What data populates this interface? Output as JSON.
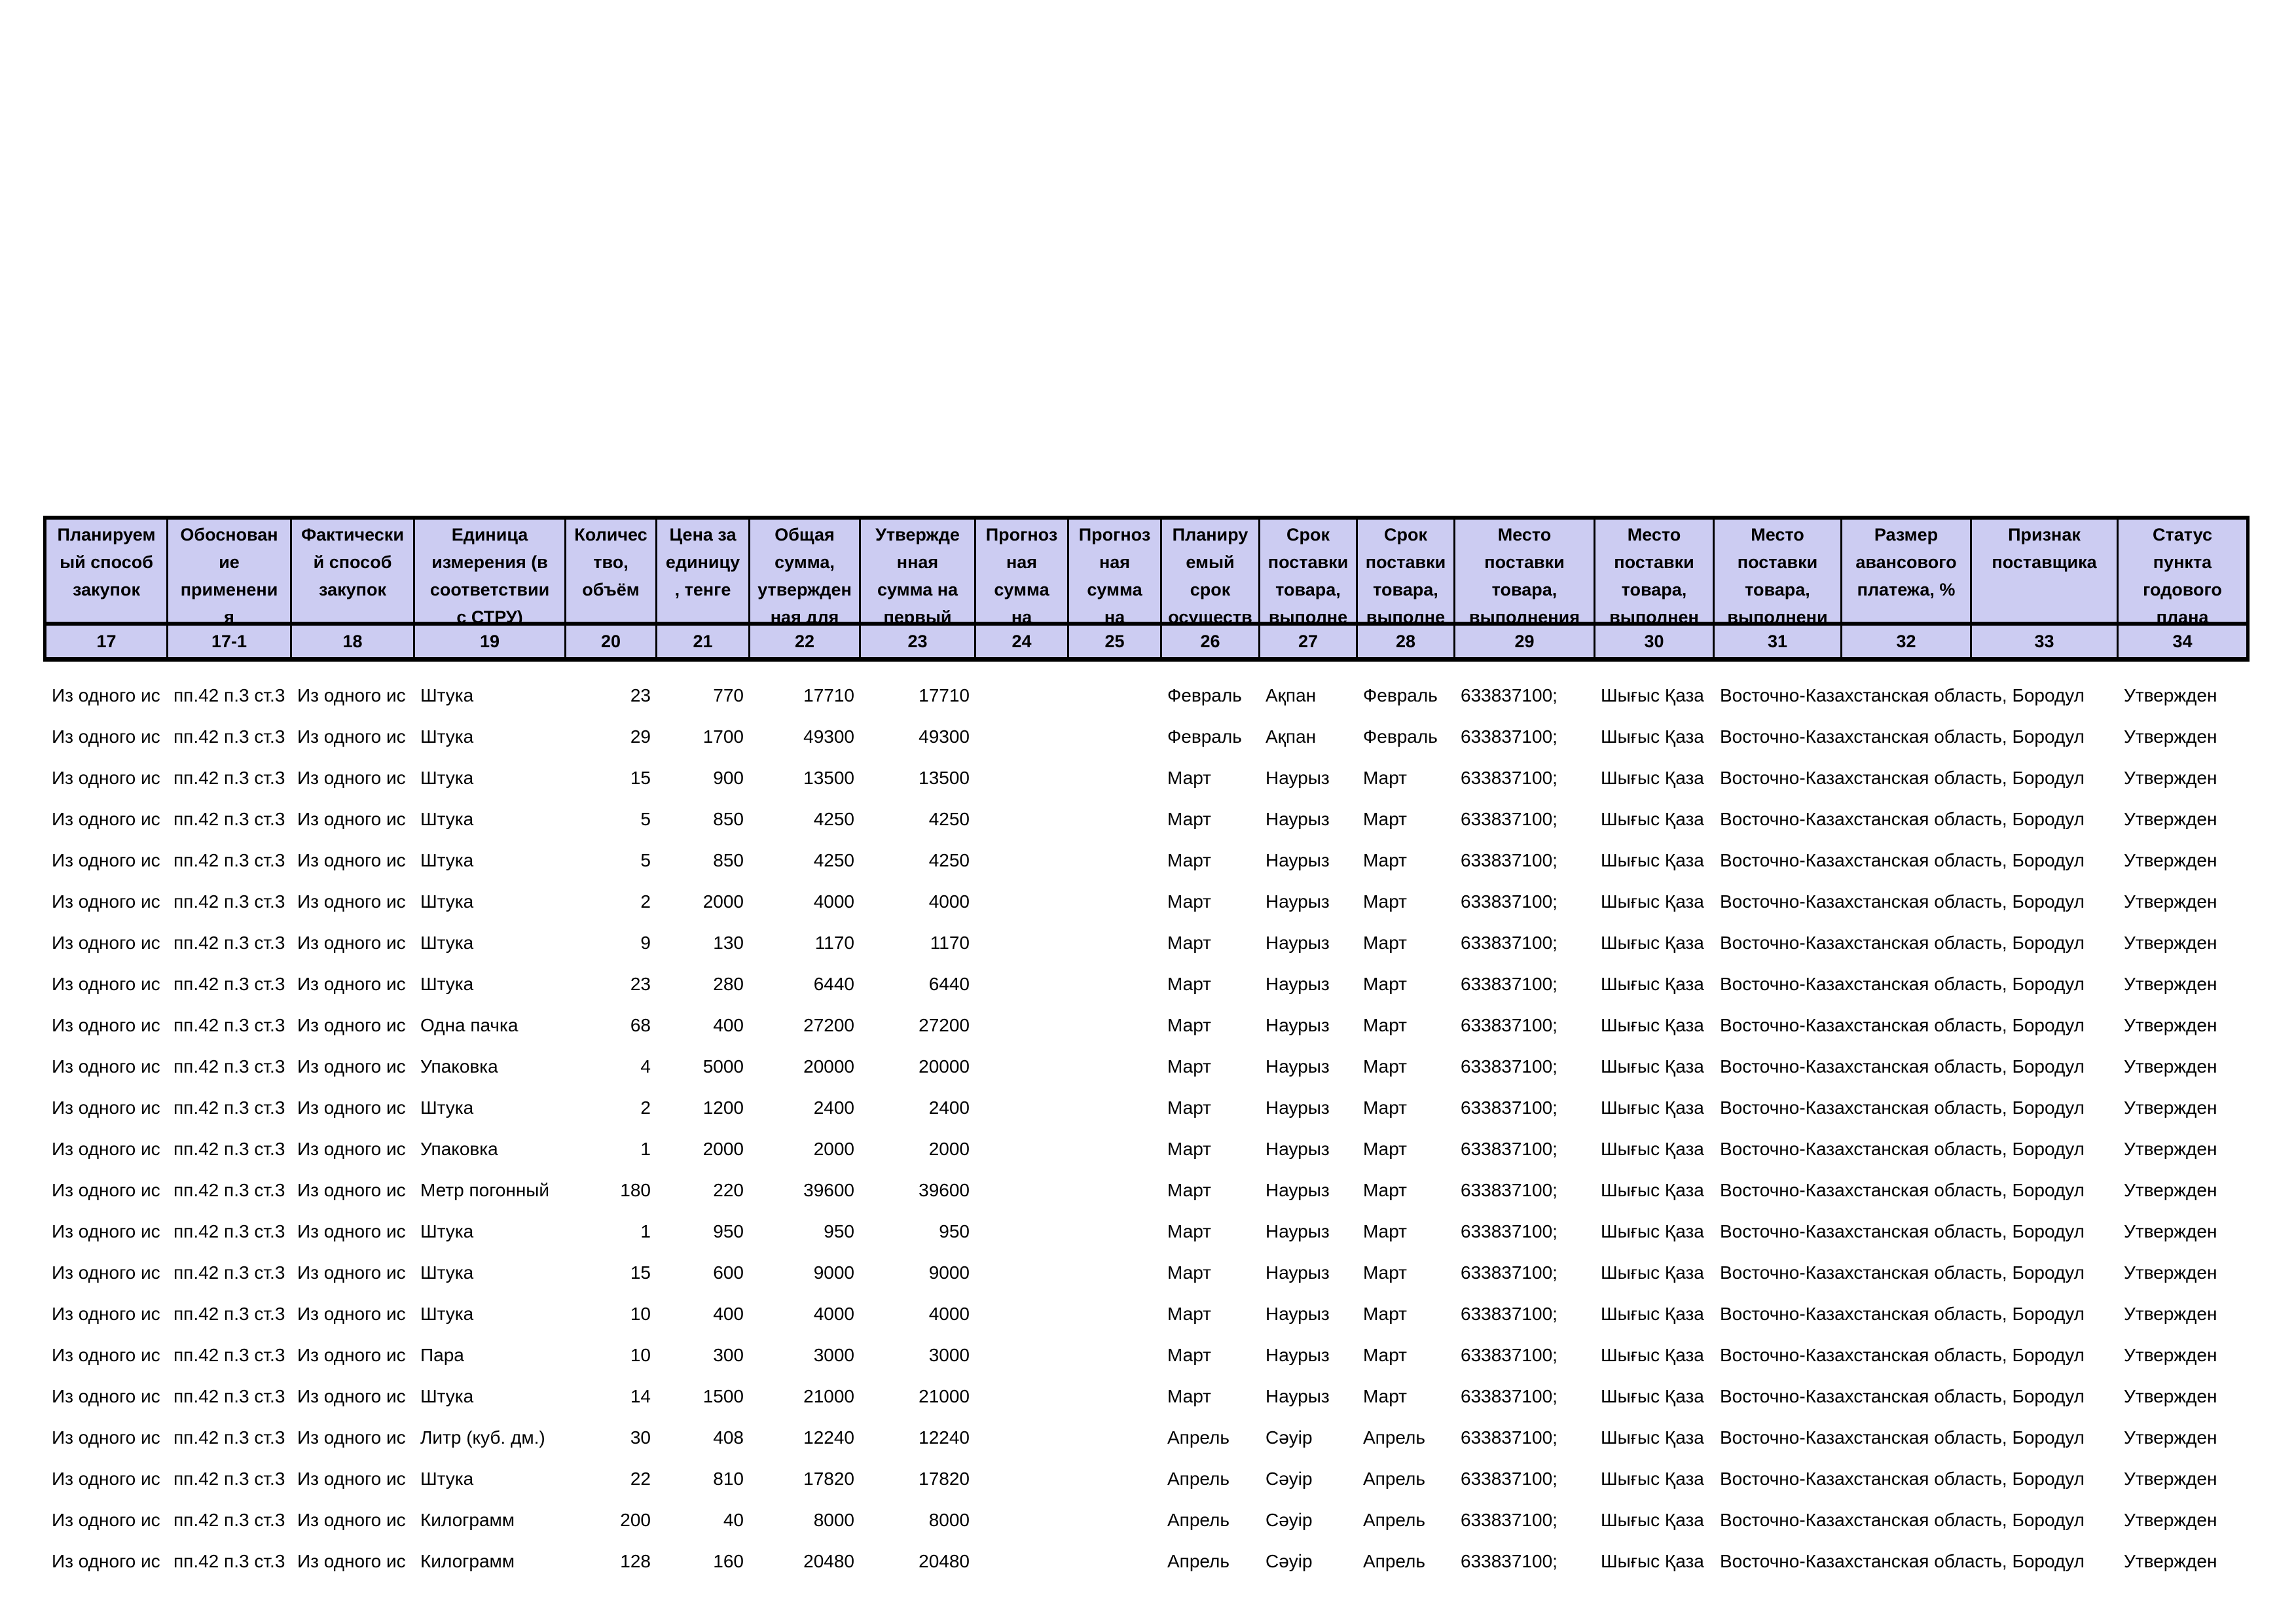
{
  "colors": {
    "header_fill": "#CCCCF2",
    "border": "#000000",
    "text": "#000000",
    "background": "#FFFFFF"
  },
  "table": {
    "columns": [
      {
        "id": "c17",
        "num": "17",
        "label": "Планируем\nый способ\nзакупок"
      },
      {
        "id": "c17_1",
        "num": "17-1",
        "label": "Обоснован\nие\nприменени\nя"
      },
      {
        "id": "c18",
        "num": "18",
        "label": "Фактически\nй способ\nзакупок"
      },
      {
        "id": "c19",
        "num": "19",
        "label": "Единица\nизмерения (в\nсоответствии\nс СТРУ)"
      },
      {
        "id": "c20",
        "num": "20",
        "label": "Количес\nтво,\nобъём"
      },
      {
        "id": "c21",
        "num": "21",
        "label": "Цена за\nединицу\n, тенге"
      },
      {
        "id": "c22",
        "num": "22",
        "label": "Общая\nсумма,\nутвержден\nная для"
      },
      {
        "id": "c23",
        "num": "23",
        "label": "Утвержде\nнная\nсумма на\nпервый"
      },
      {
        "id": "c24",
        "num": "24",
        "label": "Прогноз\nная\nсумма\nна"
      },
      {
        "id": "c25",
        "num": "25",
        "label": "Прогноз\nная\nсумма\nна"
      },
      {
        "id": "c26",
        "num": "26",
        "label": "Планиру\nемый\nсрок\nосуществ"
      },
      {
        "id": "c27",
        "num": "27",
        "label": "Срок\nпоставки\nтовара,\nвыполне"
      },
      {
        "id": "c28",
        "num": "28",
        "label": "Срок\nпоставки\nтовара,\nвыполне"
      },
      {
        "id": "c29",
        "num": "29",
        "label": "Место\nпоставки\nтовара,\nвыполнения"
      },
      {
        "id": "c30",
        "num": "30",
        "label": "Место\nпоставки\nтовара,\nвыполнен"
      },
      {
        "id": "c31",
        "num": "31",
        "label": "Место\nпоставки\nтовара,\nвыполнени"
      },
      {
        "id": "c32",
        "num": "32",
        "label": "Размер\nавансового\nплатежа, %"
      },
      {
        "id": "c33",
        "num": "33",
        "label": "Признак\nпоставщика"
      },
      {
        "id": "c34",
        "num": "34",
        "label": "Статус\nпункта\nгодового\nплана"
      }
    ],
    "rows": [
      {
        "c17": "Из одного ис",
        "c17_1": "пп.42 п.3 ст.3",
        "c18": "Из одного ис",
        "c19": "Штука",
        "c20": "23",
        "c21": "770",
        "c22": "17710",
        "c23": "17710",
        "c24": "",
        "c25": "",
        "c26": "Февраль",
        "c27": "Ақпан",
        "c28": "Февраль",
        "c29": "633837100;",
        "c30": "Шығыс Қаза",
        "c31": "Восточно-Казахстанская область, Бородул",
        "c32": "",
        "c33": "",
        "c34": "Утвержден"
      },
      {
        "c17": "Из одного ис",
        "c17_1": "пп.42 п.3 ст.3",
        "c18": "Из одного ис",
        "c19": "Штука",
        "c20": "29",
        "c21": "1700",
        "c22": "49300",
        "c23": "49300",
        "c24": "",
        "c25": "",
        "c26": "Февраль",
        "c27": "Ақпан",
        "c28": "Февраль",
        "c29": "633837100;",
        "c30": "Шығыс Қаза",
        "c31": "Восточно-Казахстанская область, Бородул",
        "c32": "",
        "c33": "",
        "c34": "Утвержден"
      },
      {
        "c17": "Из одного ис",
        "c17_1": "пп.42 п.3 ст.3",
        "c18": "Из одного ис",
        "c19": "Штука",
        "c20": "15",
        "c21": "900",
        "c22": "13500",
        "c23": "13500",
        "c24": "",
        "c25": "",
        "c26": "Март",
        "c27": "Наурыз",
        "c28": "Март",
        "c29": "633837100;",
        "c30": "Шығыс Қаза",
        "c31": "Восточно-Казахстанская область, Бородул",
        "c32": "",
        "c33": "",
        "c34": "Утвержден"
      },
      {
        "c17": "Из одного ис",
        "c17_1": "пп.42 п.3 ст.3",
        "c18": "Из одного ис",
        "c19": "Штука",
        "c20": "5",
        "c21": "850",
        "c22": "4250",
        "c23": "4250",
        "c24": "",
        "c25": "",
        "c26": "Март",
        "c27": "Наурыз",
        "c28": "Март",
        "c29": "633837100;",
        "c30": "Шығыс Қаза",
        "c31": "Восточно-Казахстанская область, Бородул",
        "c32": "",
        "c33": "",
        "c34": "Утвержден"
      },
      {
        "c17": "Из одного ис",
        "c17_1": "пп.42 п.3 ст.3",
        "c18": "Из одного ис",
        "c19": "Штука",
        "c20": "5",
        "c21": "850",
        "c22": "4250",
        "c23": "4250",
        "c24": "",
        "c25": "",
        "c26": "Март",
        "c27": "Наурыз",
        "c28": "Март",
        "c29": "633837100;",
        "c30": "Шығыс Қаза",
        "c31": "Восточно-Казахстанская область, Бородул",
        "c32": "",
        "c33": "",
        "c34": "Утвержден"
      },
      {
        "c17": "Из одного ис",
        "c17_1": "пп.42 п.3 ст.3",
        "c18": "Из одного ис",
        "c19": "Штука",
        "c20": "2",
        "c21": "2000",
        "c22": "4000",
        "c23": "4000",
        "c24": "",
        "c25": "",
        "c26": "Март",
        "c27": "Наурыз",
        "c28": "Март",
        "c29": "633837100;",
        "c30": "Шығыс Қаза",
        "c31": "Восточно-Казахстанская область, Бородул",
        "c32": "",
        "c33": "",
        "c34": "Утвержден"
      },
      {
        "c17": "Из одного ис",
        "c17_1": "пп.42 п.3 ст.3",
        "c18": "Из одного ис",
        "c19": "Штука",
        "c20": "9",
        "c21": "130",
        "c22": "1170",
        "c23": "1170",
        "c24": "",
        "c25": "",
        "c26": "Март",
        "c27": "Наурыз",
        "c28": "Март",
        "c29": "633837100;",
        "c30": "Шығыс Қаза",
        "c31": "Восточно-Казахстанская область, Бородул",
        "c32": "",
        "c33": "",
        "c34": "Утвержден"
      },
      {
        "c17": "Из одного ис",
        "c17_1": "пп.42 п.3 ст.3",
        "c18": "Из одного ис",
        "c19": "Штука",
        "c20": "23",
        "c21": "280",
        "c22": "6440",
        "c23": "6440",
        "c24": "",
        "c25": "",
        "c26": "Март",
        "c27": "Наурыз",
        "c28": "Март",
        "c29": "633837100;",
        "c30": "Шығыс Қаза",
        "c31": "Восточно-Казахстанская область, Бородул",
        "c32": "",
        "c33": "",
        "c34": "Утвержден"
      },
      {
        "c17": "Из одного ис",
        "c17_1": "пп.42 п.3 ст.3",
        "c18": "Из одного ис",
        "c19": "Одна пачка",
        "c20": "68",
        "c21": "400",
        "c22": "27200",
        "c23": "27200",
        "c24": "",
        "c25": "",
        "c26": "Март",
        "c27": "Наурыз",
        "c28": "Март",
        "c29": "633837100;",
        "c30": "Шығыс Қаза",
        "c31": "Восточно-Казахстанская область, Бородул",
        "c32": "",
        "c33": "",
        "c34": "Утвержден"
      },
      {
        "c17": "Из одного ис",
        "c17_1": "пп.42 п.3 ст.3",
        "c18": "Из одного ис",
        "c19": "Упаковка",
        "c20": "4",
        "c21": "5000",
        "c22": "20000",
        "c23": "20000",
        "c24": "",
        "c25": "",
        "c26": "Март",
        "c27": "Наурыз",
        "c28": "Март",
        "c29": "633837100;",
        "c30": "Шығыс Қаза",
        "c31": "Восточно-Казахстанская область, Бородул",
        "c32": "",
        "c33": "",
        "c34": "Утвержден"
      },
      {
        "c17": "Из одного ис",
        "c17_1": "пп.42 п.3 ст.3",
        "c18": "Из одного ис",
        "c19": "Штука",
        "c20": "2",
        "c21": "1200",
        "c22": "2400",
        "c23": "2400",
        "c24": "",
        "c25": "",
        "c26": "Март",
        "c27": "Наурыз",
        "c28": "Март",
        "c29": "633837100;",
        "c30": "Шығыс Қаза",
        "c31": "Восточно-Казахстанская область, Бородул",
        "c32": "",
        "c33": "",
        "c34": "Утвержден"
      },
      {
        "c17": "Из одного ис",
        "c17_1": "пп.42 п.3 ст.3",
        "c18": "Из одного ис",
        "c19": "Упаковка",
        "c20": "1",
        "c21": "2000",
        "c22": "2000",
        "c23": "2000",
        "c24": "",
        "c25": "",
        "c26": "Март",
        "c27": "Наурыз",
        "c28": "Март",
        "c29": "633837100;",
        "c30": "Шығыс Қаза",
        "c31": "Восточно-Казахстанская область, Бородул",
        "c32": "",
        "c33": "",
        "c34": "Утвержден"
      },
      {
        "c17": "Из одного ис",
        "c17_1": "пп.42 п.3 ст.3",
        "c18": "Из одного ис",
        "c19": "Метр погонный",
        "c20": "180",
        "c21": "220",
        "c22": "39600",
        "c23": "39600",
        "c24": "",
        "c25": "",
        "c26": "Март",
        "c27": "Наурыз",
        "c28": "Март",
        "c29": "633837100;",
        "c30": "Шығыс Қаза",
        "c31": "Восточно-Казахстанская область, Бородул",
        "c32": "",
        "c33": "",
        "c34": "Утвержден"
      },
      {
        "c17": "Из одного ис",
        "c17_1": "пп.42 п.3 ст.3",
        "c18": "Из одного ис",
        "c19": "Штука",
        "c20": "1",
        "c21": "950",
        "c22": "950",
        "c23": "950",
        "c24": "",
        "c25": "",
        "c26": "Март",
        "c27": "Наурыз",
        "c28": "Март",
        "c29": "633837100;",
        "c30": "Шығыс Қаза",
        "c31": "Восточно-Казахстанская область, Бородул",
        "c32": "",
        "c33": "",
        "c34": "Утвержден"
      },
      {
        "c17": "Из одного ис",
        "c17_1": "пп.42 п.3 ст.3",
        "c18": "Из одного ис",
        "c19": "Штука",
        "c20": "15",
        "c21": "600",
        "c22": "9000",
        "c23": "9000",
        "c24": "",
        "c25": "",
        "c26": "Март",
        "c27": "Наурыз",
        "c28": "Март",
        "c29": "633837100;",
        "c30": "Шығыс Қаза",
        "c31": "Восточно-Казахстанская область, Бородул",
        "c32": "",
        "c33": "",
        "c34": "Утвержден"
      },
      {
        "c17": "Из одного ис",
        "c17_1": "пп.42 п.3 ст.3",
        "c18": "Из одного ис",
        "c19": "Штука",
        "c20": "10",
        "c21": "400",
        "c22": "4000",
        "c23": "4000",
        "c24": "",
        "c25": "",
        "c26": "Март",
        "c27": "Наурыз",
        "c28": "Март",
        "c29": "633837100;",
        "c30": "Шығыс Қаза",
        "c31": "Восточно-Казахстанская область, Бородул",
        "c32": "",
        "c33": "",
        "c34": "Утвержден"
      },
      {
        "c17": "Из одного ис",
        "c17_1": "пп.42 п.3 ст.3",
        "c18": "Из одного ис",
        "c19": "Пара",
        "c20": "10",
        "c21": "300",
        "c22": "3000",
        "c23": "3000",
        "c24": "",
        "c25": "",
        "c26": "Март",
        "c27": "Наурыз",
        "c28": "Март",
        "c29": "633837100;",
        "c30": "Шығыс Қаза",
        "c31": "Восточно-Казахстанская область, Бородул",
        "c32": "",
        "c33": "",
        "c34": "Утвержден"
      },
      {
        "c17": "Из одного ис",
        "c17_1": "пп.42 п.3 ст.3",
        "c18": "Из одного ис",
        "c19": "Штука",
        "c20": "14",
        "c21": "1500",
        "c22": "21000",
        "c23": "21000",
        "c24": "",
        "c25": "",
        "c26": "Март",
        "c27": "Наурыз",
        "c28": "Март",
        "c29": "633837100;",
        "c30": "Шығыс Қаза",
        "c31": "Восточно-Казахстанская область, Бородул",
        "c32": "",
        "c33": "",
        "c34": "Утвержден"
      },
      {
        "c17": "Из одного ис",
        "c17_1": "пп.42 п.3 ст.3",
        "c18": "Из одного ис",
        "c19": "Литр (куб. дм.)",
        "c20": "30",
        "c21": "408",
        "c22": "12240",
        "c23": "12240",
        "c24": "",
        "c25": "",
        "c26": "Апрель",
        "c27": "Сәуір",
        "c28": "Апрель",
        "c29": "633837100;",
        "c30": "Шығыс Қаза",
        "c31": "Восточно-Казахстанская область, Бородул",
        "c32": "",
        "c33": "",
        "c34": "Утвержден"
      },
      {
        "c17": "Из одного ис",
        "c17_1": "пп.42 п.3 ст.3",
        "c18": "Из одного ис",
        "c19": "Штука",
        "c20": "22",
        "c21": "810",
        "c22": "17820",
        "c23": "17820",
        "c24": "",
        "c25": "",
        "c26": "Апрель",
        "c27": "Сәуір",
        "c28": "Апрель",
        "c29": "633837100;",
        "c30": "Шығыс Қаза",
        "c31": "Восточно-Казахстанская область, Бородул",
        "c32": "",
        "c33": "",
        "c34": "Утвержден"
      },
      {
        "c17": "Из одного ис",
        "c17_1": "пп.42 п.3 ст.3",
        "c18": "Из одного ис",
        "c19": "Килограмм",
        "c20": "200",
        "c21": "40",
        "c22": "8000",
        "c23": "8000",
        "c24": "",
        "c25": "",
        "c26": "Апрель",
        "c27": "Сәуір",
        "c28": "Апрель",
        "c29": "633837100;",
        "c30": "Шығыс Қаза",
        "c31": "Восточно-Казахстанская область, Бородул",
        "c32": "",
        "c33": "",
        "c34": "Утвержден"
      },
      {
        "c17": "Из одного ис",
        "c17_1": "пп.42 п.3 ст.3",
        "c18": "Из одного ис",
        "c19": "Килограмм",
        "c20": "128",
        "c21": "160",
        "c22": "20480",
        "c23": "20480",
        "c24": "",
        "c25": "",
        "c26": "Апрель",
        "c27": "Сәуір",
        "c28": "Апрель",
        "c29": "633837100;",
        "c30": "Шығыс Қаза",
        "c31": "Восточно-Казахстанская область, Бородул",
        "c32": "",
        "c33": "",
        "c34": "Утвержден"
      }
    ]
  }
}
